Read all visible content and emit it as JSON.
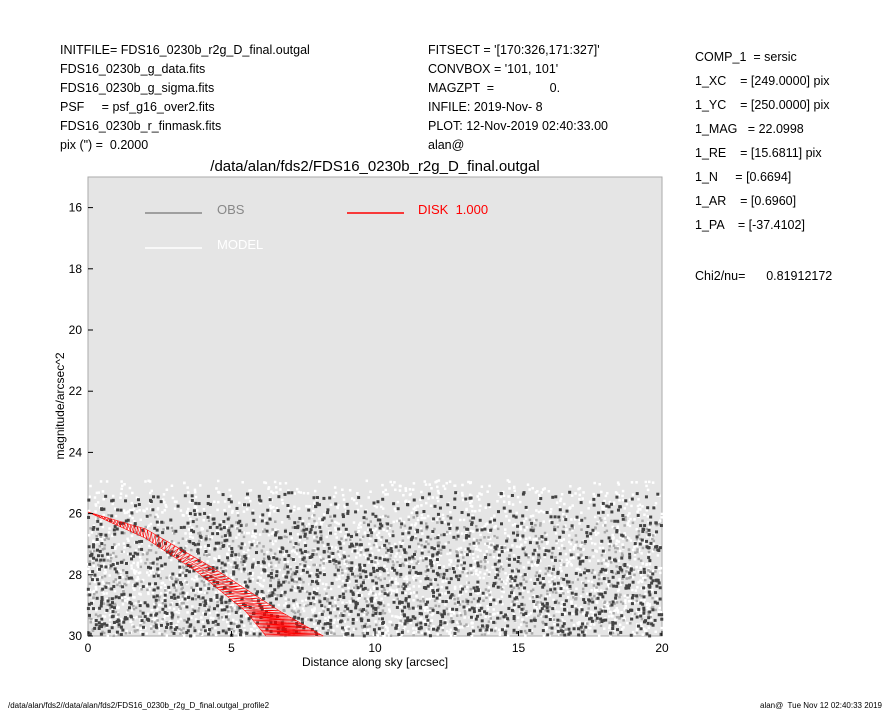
{
  "header_left": [
    "INITFILE= FDS16_0230b_r2g_D_final.outgal",
    "FDS16_0230b_g_data.fits",
    "FDS16_0230b_g_sigma.fits",
    "PSF     = psf_g16_over2.fits",
    "FDS16_0230b_r_finmask.fits",
    "pix (\") =  0.2000"
  ],
  "header_mid": [
    "FITSECT = '[170:326,171:327]'",
    "CONVBOX = '101, 101'",
    "MAGZPT  =                0.",
    "INFILE: 2019-Nov- 8",
    "PLOT: 12-Nov-2019 02:40:33.00",
    "alan@"
  ],
  "params": [
    "COMP_1  = sersic",
    "1_XC    = [249.0000] pix",
    "1_YC    = [250.0000] pix",
    "1_MAG   = 22.0998",
    "1_RE    = [15.6811] pix",
    "1_N     = [0.6694]",
    "1_AR    = [0.6960]",
    "1_PA    = [-37.4102]"
  ],
  "chi2": "Chi2/nu=      0.81912172",
  "footer_left": "/data/alan/fds2//data/alan/fds2/FDS16_0230b_r2g_D_final.outgal_profile2",
  "footer_right": "alan@  Tue Nov 12 02:40:33 2019",
  "colors": {
    "background": "#e5e5e5",
    "obs": "#888888",
    "model": "#ffffff",
    "disk": "#ff0000",
    "obs_points": "#444444"
  },
  "chart_data": {
    "type": "scatter",
    "title": "/data/alan/fds2/FDS16_0230b_r2g_D_final.outgal",
    "xlabel": "Distance along sky [arcsec]",
    "ylabel": "magnitude/arcsec^2",
    "xlim": [
      0,
      20
    ],
    "ylim": [
      30,
      15
    ],
    "y_inverted": true,
    "xticks": [
      "0",
      "5",
      "10",
      "15",
      "20"
    ],
    "yticks": [
      "16",
      "18",
      "20",
      "22",
      "24",
      "26",
      "28",
      "30"
    ],
    "grid": false,
    "legend": [
      {
        "label": "OBS",
        "color": "#888888"
      },
      {
        "label": "MODEL",
        "color": "#ffffff"
      },
      {
        "label": "DISK  1.000",
        "color": "#ff0000"
      }
    ],
    "legend_placement": "top",
    "series": [
      {
        "label_ref": "DISK  1.000",
        "band_bright_edge": [
          [
            0,
            25.95
          ],
          [
            2.0,
            26.5
          ],
          [
            4.4,
            27.8
          ],
          [
            6.7,
            29.2
          ],
          [
            8.2,
            30.0
          ]
        ],
        "band_faint_edge": [
          [
            0,
            25.95
          ],
          [
            2.0,
            26.8
          ],
          [
            3.8,
            27.9
          ],
          [
            5.5,
            29.2
          ],
          [
            6.2,
            30.0
          ]
        ]
      }
    ],
    "scatter_extent": {
      "obs_mag_range": [
        25.3,
        30
      ],
      "model_mag_range": [
        24.9,
        30
      ],
      "x_range": [
        0,
        20
      ]
    }
  }
}
